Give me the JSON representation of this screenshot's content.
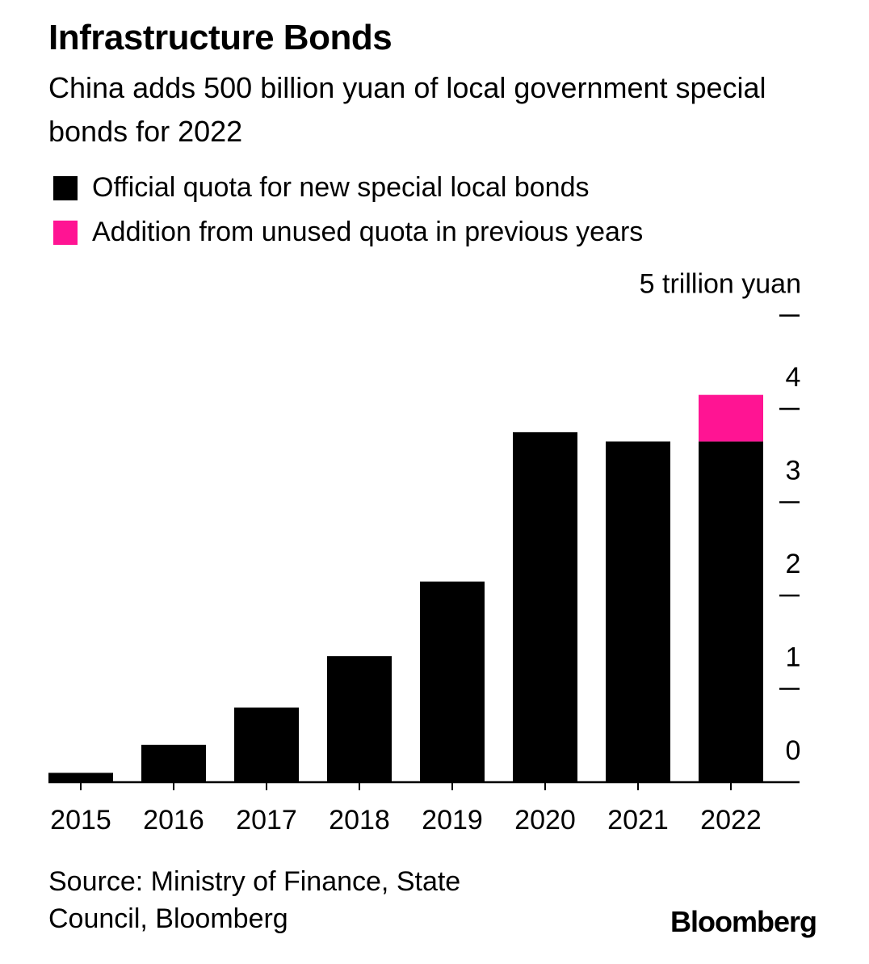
{
  "chart_data": {
    "type": "bar",
    "stacked": true,
    "title": "Infrastructure Bonds",
    "subtitle": "China adds 500 billion yuan of local government special bonds for 2022",
    "categories": [
      "2015",
      "2016",
      "2017",
      "2018",
      "2019",
      "2020",
      "2021",
      "2022"
    ],
    "series": [
      {
        "name": "Official quota for new special local bonds",
        "color": "#000000",
        "values": [
          0.1,
          0.4,
          0.8,
          1.35,
          2.15,
          3.75,
          3.65,
          3.65
        ]
      },
      {
        "name": "Addition from unused quota in previous years",
        "color": "#ff1493",
        "values": [
          0,
          0,
          0,
          0,
          0,
          0,
          0,
          0.5
        ]
      }
    ],
    "ylabel": "5 trillion yuan",
    "y_ticks": [
      "0",
      "1",
      "2",
      "3",
      "4"
    ],
    "ylim": [
      0,
      5
    ],
    "axis_side": "right",
    "legend_position": "top-left",
    "grid": false
  },
  "source": "Source: Ministry of Finance, State Council, Bloomberg",
  "brand": "Bloomberg"
}
